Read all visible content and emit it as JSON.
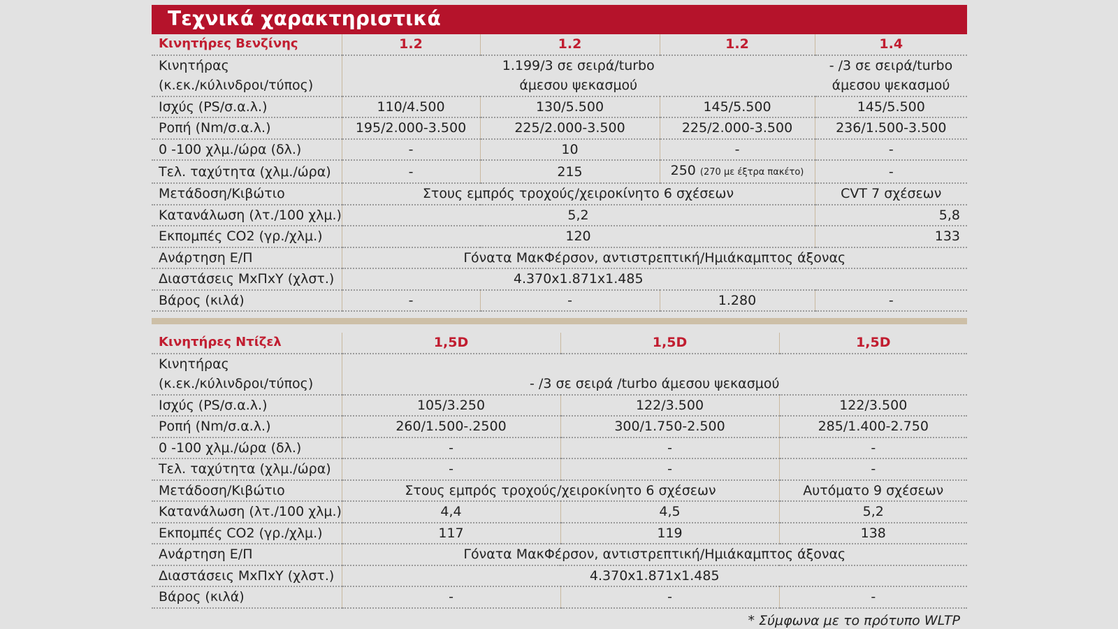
{
  "title": "Τεχνικά χαρακτηριστικά",
  "petrol": {
    "header": {
      "label": "Κινητήρες Βενζίνης",
      "c1": "1.2",
      "c2": "1.2",
      "c3": "1.2",
      "c4": "1.4"
    },
    "engine": {
      "label1": "Κινητήρας",
      "label2": "(κ.εκ./κύλινδροι/τύπος)",
      "v123_line1": "1.199/3 σε σειρά/turbo",
      "v123_line2": "άμεσου ψεκασμού",
      "v4_line1": "- /3 σε σειρά/turbo",
      "v4_line2": "άμεσου ψεκασμού"
    },
    "power": {
      "label": "Ισχύς (PS/σ.α.λ.)",
      "c1": "110/4.500",
      "c2": "130/5.500",
      "c3": "145/5.500",
      "c4": "145/5.500"
    },
    "torque": {
      "label": "Ροπή (Nm/σ.α.λ.)",
      "c1": "195/2.000-3.500",
      "c2": "225/2.000-3.500",
      "c3": "225/2.000-3.500",
      "c4": "236/1.500-3.500"
    },
    "accel": {
      "label": "0 -100 χλμ./ώρα (δλ.)",
      "c1": "-",
      "c2": "10",
      "c3": "-",
      "c4": "-"
    },
    "top_speed": {
      "label": "Τελ. ταχύτητα (χλμ./ώρα)",
      "c1": "-",
      "c2": "215",
      "c3_main": "250",
      "c3_note": "(270 με έξτρα πακέτο)",
      "c4": "-"
    },
    "transmission": {
      "label": "Μετάδοση/Κιβώτιο",
      "v123": "Στους εμπρός τροχούς/χειροκίνητο 6 σχέσεων",
      "v4": "CVT 7 σχέσεων"
    },
    "consumption": {
      "label": "Κατανάλωση (λτ./100 χλμ.)*",
      "v123": "5,2",
      "v4": "5,8"
    },
    "co2": {
      "label": "Εκπομπές CO2 (γρ./χλμ.)",
      "v123": "120",
      "v4": "133"
    },
    "suspension": {
      "label": "Ανάρτηση Ε/Π",
      "value": "Γόνατα ΜακΦέρσον, αντιστρεπτική/Ημιάκαμπτος άξονας"
    },
    "dimensions": {
      "label": "Διαστάσεις ΜxΠxΥ (χλστ.)",
      "value": "4.370x1.871x1.485"
    },
    "weight": {
      "label": "Βάρος (κιλά)",
      "c1": "-",
      "c2": "-",
      "c3": "1.280",
      "c4": "-"
    }
  },
  "diesel": {
    "header": {
      "label": "Κινητήρες Ντίζελ",
      "c1": "1,5D",
      "c2": "1,5D",
      "c3": "1,5D"
    },
    "engine": {
      "label1": "Κινητήρας",
      "label2": "(κ.εκ./κύλινδροι/τύπος)",
      "value": "- /3 σε σειρά /turbo άμεσου ψεκασμού"
    },
    "power": {
      "label": "Ισχύς (PS/σ.α.λ.)",
      "c1": "105/3.250",
      "c2": "122/3.500",
      "c3": "122/3.500"
    },
    "torque": {
      "label": "Ροπή (Nm/σ.α.λ.)",
      "c1": "260/1.500-.2500",
      "c2": "300/1.750-2.500",
      "c3": "285/1.400-2.750"
    },
    "accel": {
      "label": "0 -100 χλμ./ώρα (δλ.)",
      "c1": "-",
      "c2": "-",
      "c3": "-"
    },
    "top_speed": {
      "label": "Τελ. ταχύτητα (χλμ./ώρα)",
      "c1": "-",
      "c2": "-",
      "c3": "-"
    },
    "transmission": {
      "label": "Μετάδοση/Κιβώτιο",
      "v12": "Στους εμπρός τροχούς/χειροκίνητο 6 σχέσεων",
      "v3": "Αυτόματο 9 σχέσεων"
    },
    "consumption": {
      "label": "Κατανάλωση (λτ./100 χλμ.)*",
      "c1": "4,4",
      "c2": "4,5",
      "c3": "5,2"
    },
    "co2": {
      "label": "Εκπομπές CO2 (γρ./χλμ.)",
      "c1": "117",
      "c2": "119",
      "c3": "138"
    },
    "suspension": {
      "label": "Ανάρτηση Ε/Π",
      "value": "Γόνατα ΜακΦέρσον, αντιστρεπτική/Ημιάκαμπτος άξονας"
    },
    "dimensions": {
      "label": "Διαστάσεις ΜxΠxΥ (χλστ.)",
      "value": "4.370x1.871x1.485"
    },
    "weight": {
      "label": "Βάρος (κιλά)",
      "c1": "-",
      "c2": "-",
      "c3": "-"
    }
  },
  "footnote": "* Σύμφωνα με το πρότυπο WLTP",
  "colors": {
    "accent": "#b5132b",
    "header_text": "#c11d30",
    "separator": "#cdbfa7",
    "background": "#e2e2e2"
  }
}
